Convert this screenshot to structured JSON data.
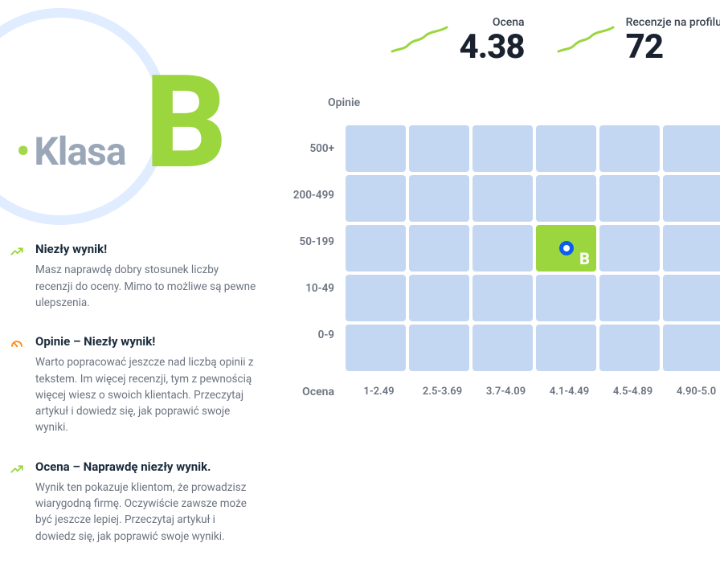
{
  "grade": {
    "label": "Klasa",
    "letter": "B",
    "circle_color": "#e0ecff",
    "letter_color": "#9bd63e",
    "label_color": "#9aa7b8"
  },
  "feedback": [
    {
      "icon": "trend-up",
      "icon_color": "#9bd63e",
      "title": "Niezły wynik!",
      "text": "Masz naprawdę dobry stosunek liczby recenzji do oceny. Mimo to możliwe są pewne ulepszenia."
    },
    {
      "icon": "gauge",
      "icon_color": "#ff8c1a",
      "title": "Opinie – Niezły wynik!",
      "text": "Warto popracować jeszcze nad liczbą opinii z tekstem. Im więcej recenzji, tym z pewnością więcej wiesz o swoich klientach. Przeczytaj artykuł i dowiedz się, jak poprawić swoje wyniki."
    },
    {
      "icon": "trend-up",
      "icon_color": "#9bd63e",
      "title": "Ocena – Naprawdę niezły wynik.",
      "text": "Wynik ten pokazuje klientom, że prowadzisz wiarygodną firmę. Oczywiście zawsze może być jeszcze lepiej. Przeczytaj artykuł i dowiedz się, jak poprawić swoje wyniki."
    }
  ],
  "metrics": {
    "rating": {
      "label": "Ocena",
      "value": "4.38",
      "spark_color": "#9bd63e"
    },
    "reviews": {
      "label": "Recenzje na profilu",
      "value": "72",
      "spark_color": "#9bd63e"
    }
  },
  "heatmap": {
    "y_axis_title": "Opinie",
    "x_axis_title": "Ocena",
    "rows": [
      "500+",
      "200-499",
      "50-199",
      "10-49",
      "0-9"
    ],
    "cols": [
      "1-2.49",
      "2.5-3.69",
      "3.7-4.09",
      "4.1-4.49",
      "4.5-4.89",
      "4.90-5.0"
    ],
    "cell_color": "#c3d6f2",
    "active_color": "#9bd63e",
    "marker_ring_color": "#0b5cf0",
    "active_cell": {
      "row": 2,
      "col": 3,
      "letter": "B"
    }
  },
  "colors": {
    "text_primary": "#1a2b3c",
    "text_secondary": "#6b7380",
    "background": "#ffffff"
  }
}
